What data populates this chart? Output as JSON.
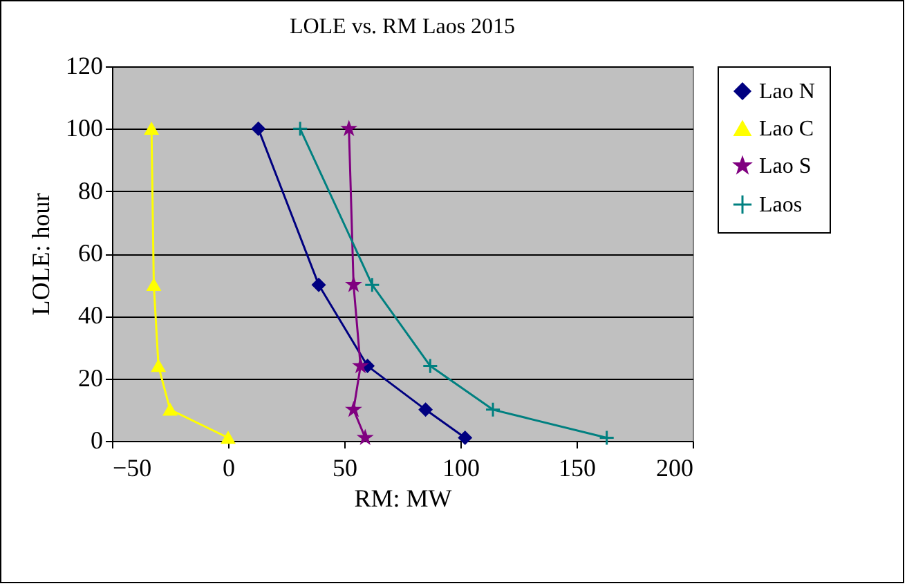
{
  "chart_data": {
    "type": "line",
    "title": "LOLE vs. RM Laos 2015",
    "xlabel": "RM: MW",
    "ylabel": "LOLE: hour",
    "series": [
      {
        "name": "Lao N",
        "color": "#000080",
        "marker": "diamond",
        "x": [
          13,
          39,
          60,
          85,
          102
        ],
        "values": [
          100,
          50,
          24,
          10,
          1
        ]
      },
      {
        "name": "Lao C",
        "color": "#ffff00",
        "marker": "triangle",
        "x": [
          -33,
          -32,
          -30,
          -25,
          0
        ],
        "values": [
          100,
          50,
          24,
          10,
          1
        ]
      },
      {
        "name": "Lao S",
        "color": "#800080",
        "marker": "star",
        "x": [
          52,
          54,
          57,
          54,
          59
        ],
        "values": [
          100,
          50,
          24,
          10,
          1
        ]
      },
      {
        "name": "Laos",
        "color": "#008080",
        "marker": "cross",
        "x": [
          31,
          62,
          87,
          114,
          163
        ],
        "values": [
          100,
          50,
          24,
          10,
          1
        ]
      }
    ],
    "xlim": [
      -50,
      200
    ],
    "xticks": [
      -50,
      0,
      50,
      100,
      150,
      200
    ],
    "ylim": [
      0,
      120
    ],
    "yticks": [
      0,
      20,
      40,
      60,
      80,
      100,
      120
    ],
    "grid": "y",
    "legend": "right"
  }
}
